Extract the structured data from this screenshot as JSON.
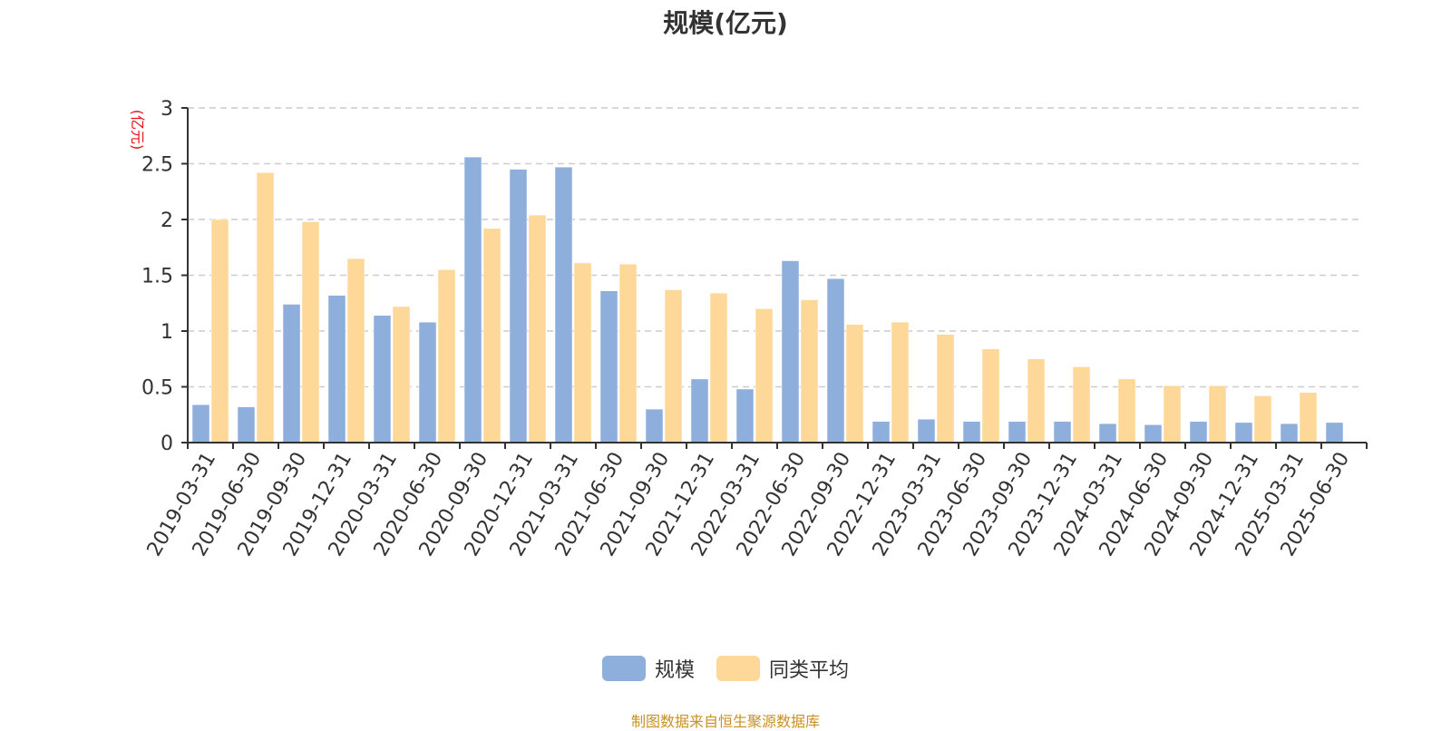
{
  "colors": {
    "series_a": "#8eaedc",
    "series_b": "#fdd898",
    "unit_label": "#e8101a",
    "source_note": "#c99022"
  },
  "source_note": "制图数据来自恒生聚源数据库",
  "chart_data": {
    "type": "bar",
    "title": "规模(亿元)",
    "ylabel": "(亿元)",
    "xlabel": "",
    "ylim": [
      0,
      3
    ],
    "yticks": [
      "0",
      "0.5",
      "1",
      "1.5",
      "2",
      "2.5",
      "3"
    ],
    "grid": true,
    "legend_position": "bottom",
    "categories": [
      "2019-03-31",
      "2019-06-30",
      "2019-09-30",
      "2019-12-31",
      "2020-03-31",
      "2020-06-30",
      "2020-09-30",
      "2020-12-31",
      "2021-03-31",
      "2021-06-30",
      "2021-09-30",
      "2021-12-31",
      "2022-03-31",
      "2022-06-30",
      "2022-09-30",
      "2022-12-31",
      "2023-03-31",
      "2023-06-30",
      "2023-09-30",
      "2023-12-31",
      "2024-03-31",
      "2024-06-30",
      "2024-09-30",
      "2024-12-31",
      "2025-03-31",
      "2025-06-30"
    ],
    "series": [
      {
        "name": "规模",
        "values": [
          0.34,
          0.32,
          1.24,
          1.32,
          1.14,
          1.08,
          2.56,
          2.45,
          2.47,
          1.36,
          0.3,
          0.57,
          0.48,
          1.63,
          1.47,
          0.19,
          0.21,
          0.19,
          0.19,
          0.19,
          0.17,
          0.16,
          0.19,
          0.18,
          0.17,
          0.18
        ]
      },
      {
        "name": "同类平均",
        "values": [
          2.0,
          2.42,
          1.98,
          1.65,
          1.22,
          1.55,
          1.92,
          2.04,
          1.61,
          1.6,
          1.37,
          1.34,
          1.2,
          1.28,
          1.06,
          1.08,
          0.97,
          0.84,
          0.75,
          0.68,
          0.57,
          0.51,
          0.51,
          0.42,
          0.45,
          null
        ]
      }
    ]
  }
}
